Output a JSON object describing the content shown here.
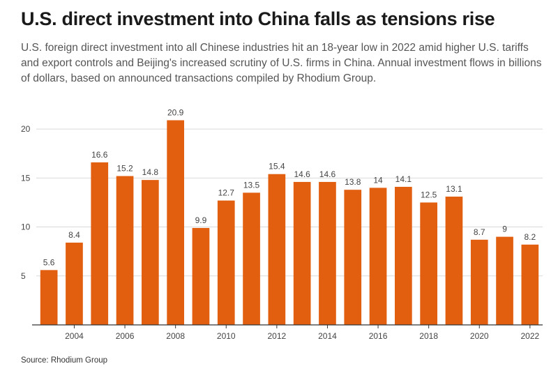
{
  "header": {
    "title": "U.S. direct investment into China falls as tensions rise",
    "subtitle": "U.S. foreign direct investment into all Chinese industries hit an 18-year low in 2022 amid higher U.S. tariffs and export controls and Beijing's increased scrutiny of U.S. firms in China. Annual investment flows in billions of dollars, based on announced transactions compiled by Rhodium Group."
  },
  "footer": {
    "source": "Source: Rhodium Group"
  },
  "chart_data": {
    "type": "bar",
    "categories": [
      "2003",
      "2004",
      "2005",
      "2006",
      "2007",
      "2008",
      "2009",
      "2010",
      "2011",
      "2012",
      "2013",
      "2014",
      "2015",
      "2016",
      "2017",
      "2018",
      "2019",
      "2020",
      "2021",
      "2022"
    ],
    "values": [
      5.6,
      8.4,
      16.6,
      15.2,
      14.8,
      20.9,
      9.9,
      12.7,
      13.5,
      15.4,
      14.6,
      14.6,
      13.8,
      14,
      14.1,
      12.5,
      13.1,
      8.7,
      9,
      8.2
    ],
    "value_labels": [
      "5.6",
      "8.4",
      "16.6",
      "15.2",
      "14.8",
      "20.9",
      "9.9",
      "12.7",
      "13.5",
      "15.4",
      "14.6",
      "14.6",
      "13.8",
      "14",
      "14.1",
      "12.5",
      "13.1",
      "8.7",
      "9",
      "8.2"
    ],
    "x_tick_labels": [
      "2004",
      "2006",
      "2008",
      "2010",
      "2012",
      "2014",
      "2016",
      "2018",
      "2020",
      "2022"
    ],
    "y_ticks": [
      5,
      10,
      15,
      20
    ],
    "ylim": [
      0,
      22.5
    ],
    "xlabel": "",
    "ylabel": "",
    "grid": true,
    "bar_color": "#e25f10"
  }
}
